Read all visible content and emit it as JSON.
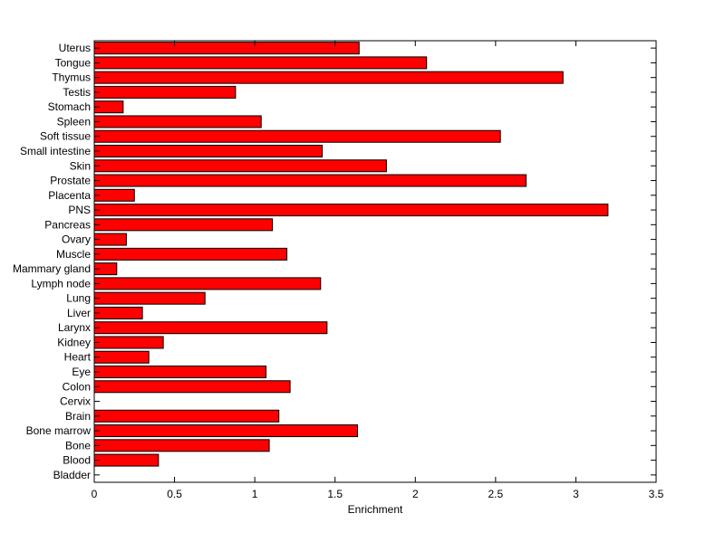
{
  "chart_data": {
    "type": "bar",
    "orientation": "horizontal",
    "categories": [
      "Bladder",
      "Blood",
      "Bone",
      "Bone marrow",
      "Brain",
      "Cervix",
      "Colon",
      "Eye",
      "Heart",
      "Kidney",
      "Larynx",
      "Liver",
      "Lung",
      "Lymph node",
      "Mammary gland",
      "Muscle",
      "Ovary",
      "Pancreas",
      "PNS",
      "Placenta",
      "Prostate",
      "Skin",
      "Small intestine",
      "Soft tissue",
      "Spleen",
      "Stomach",
      "Testis",
      "Thymus",
      "Tongue",
      "Uterus"
    ],
    "values": [
      0,
      0.4,
      1.09,
      1.64,
      1.15,
      0,
      1.22,
      1.07,
      0.34,
      0.43,
      1.45,
      0.3,
      0.69,
      1.41,
      0.14,
      1.2,
      0.2,
      1.11,
      3.2,
      0.25,
      2.69,
      1.82,
      1.42,
      2.53,
      1.04,
      0.18,
      0.88,
      2.92,
      2.07,
      1.65
    ],
    "xlabel": "Enrichment",
    "ylabel": "",
    "title": "",
    "xlim": [
      0,
      3.5
    ],
    "xticks": [
      0,
      0.5,
      1,
      1.5,
      2,
      2.5,
      3,
      3.5
    ],
    "xtick_labels": [
      "0",
      "0.5",
      "1",
      "1.5",
      "2",
      "2.5",
      "3",
      "3.5"
    ],
    "grid": false,
    "legend": "none",
    "bar_color": "#ff0000",
    "edge_color": "#000000"
  }
}
